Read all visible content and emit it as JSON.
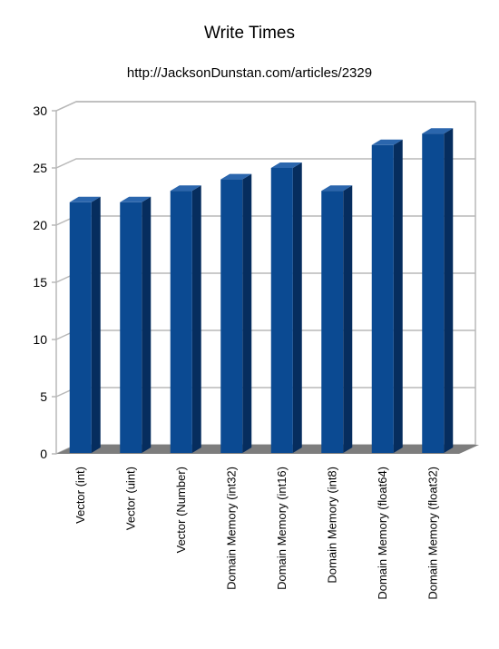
{
  "title": "Write Times",
  "subtitle": "http://JacksonDunstan.com/articles/2329",
  "colors": {
    "bar_front": "#0b4a92",
    "bar_side": "#062d5e",
    "bar_top": "#2b66ad",
    "floor": "#7d7d7d",
    "grid": "#b8b8b8"
  },
  "chart_data": {
    "type": "bar",
    "title": "Write Times",
    "subtitle": "http://JacksonDunstan.com/articles/2329",
    "categories": [
      "Vector (int)",
      "Vector (uint)",
      "Vector (Number)",
      "Domain Memory (int32)",
      "Domain Memory (int16)",
      "Domain Memory (int8)",
      "Domain Memory (float64)",
      "Domain Memory (float32)"
    ],
    "values": [
      22,
      22,
      23,
      24,
      25,
      23,
      27,
      28
    ],
    "ylim": [
      0,
      30
    ],
    "yticks": [
      0,
      5,
      10,
      15,
      20,
      25,
      30
    ],
    "grid": true,
    "style": "3d-bar"
  }
}
